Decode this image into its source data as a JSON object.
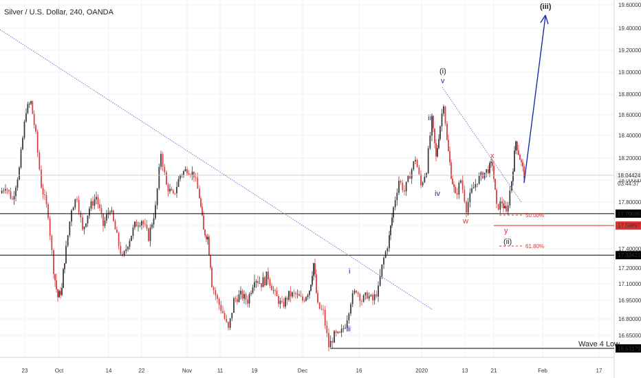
{
  "header": {
    "title": "Silver / U.S. Dollar, 240, OANDA"
  },
  "colors": {
    "up": "#3a3a3a",
    "down": "#e04040",
    "blue": "#1b2aa8",
    "red": "#e03030",
    "grid": "#eef1f6",
    "axis": "#555555"
  },
  "chart_data": {
    "type": "candlestick",
    "title": "Silver / U.S. Dollar, 240, OANDA",
    "ylim": [
      16.5,
      19.7
    ],
    "y_ticks": [
      "19.60000",
      "19.40000",
      "19.20000",
      "19.00000",
      "18.80000",
      "18.60000",
      "18.40000",
      "18.20000",
      "18.00000",
      "17.80000",
      "17.60000",
      "17.40000",
      "17.20000",
      "17.10000",
      "16.95000",
      "16.80000",
      "16.65000"
    ],
    "x_ticks": [
      "23",
      "Oct",
      "14",
      "22",
      "Nov",
      "11",
      "19",
      "Dec",
      "16",
      "2020",
      "13",
      "21",
      "Feb",
      "17"
    ],
    "price_path": [
      [
        0,
        17.88
      ],
      [
        8,
        17.95
      ],
      [
        18,
        17.82
      ],
      [
        28,
        18.1
      ],
      [
        38,
        18.65
      ],
      [
        45,
        18.72
      ],
      [
        52,
        18.4
      ],
      [
        60,
        17.95
      ],
      [
        70,
        17.7
      ],
      [
        78,
        17.2
      ],
      [
        84,
        16.98
      ],
      [
        90,
        17.05
      ],
      [
        96,
        17.4
      ],
      [
        104,
        17.75
      ],
      [
        112,
        17.85
      ],
      [
        120,
        17.55
      ],
      [
        130,
        17.75
      ],
      [
        140,
        17.85
      ],
      [
        150,
        17.6
      ],
      [
        160,
        17.75
      ],
      [
        170,
        17.5
      ],
      [
        178,
        17.3
      ],
      [
        186,
        17.45
      ],
      [
        196,
        17.6
      ],
      [
        206,
        17.65
      ],
      [
        216,
        17.5
      ],
      [
        226,
        17.75
      ],
      [
        234,
        18.25
      ],
      [
        242,
        17.95
      ],
      [
        252,
        17.85
      ],
      [
        262,
        18.05
      ],
      [
        272,
        18.1
      ],
      [
        282,
        18.05
      ],
      [
        290,
        17.85
      ],
      [
        296,
        17.55
      ],
      [
        302,
        17.5
      ],
      [
        308,
        17.1
      ],
      [
        316,
        16.95
      ],
      [
        324,
        16.85
      ],
      [
        332,
        16.7
      ],
      [
        340,
        16.95
      ],
      [
        350,
        17.0
      ],
      [
        360,
        16.95
      ],
      [
        370,
        17.15
      ],
      [
        380,
        17.1
      ],
      [
        390,
        17.15
      ],
      [
        400,
        17.0
      ],
      [
        410,
        16.9
      ],
      [
        420,
        17.0
      ],
      [
        430,
        17.0
      ],
      [
        440,
        16.95
      ],
      [
        450,
        17.05
      ],
      [
        456,
        17.25
      ],
      [
        462,
        16.9
      ],
      [
        470,
        16.85
      ],
      [
        478,
        16.55
      ],
      [
        486,
        16.65
      ],
      [
        494,
        16.65
      ],
      [
        502,
        16.75
      ],
      [
        510,
        16.95
      ],
      [
        518,
        17.05
      ],
      [
        526,
        16.95
      ],
      [
        534,
        17.0
      ],
      [
        542,
        16.95
      ],
      [
        550,
        17.05
      ],
      [
        558,
        17.3
      ],
      [
        566,
        17.5
      ],
      [
        572,
        17.75
      ],
      [
        580,
        18.0
      ],
      [
        588,
        17.9
      ],
      [
        596,
        18.05
      ],
      [
        604,
        18.2
      ],
      [
        612,
        17.95
      ],
      [
        620,
        18.1
      ],
      [
        628,
        18.55
      ],
      [
        634,
        18.2
      ],
      [
        640,
        18.5
      ],
      [
        645,
        18.72
      ],
      [
        650,
        18.35
      ],
      [
        656,
        18.05
      ],
      [
        662,
        17.85
      ],
      [
        670,
        18.0
      ],
      [
        678,
        17.75
      ],
      [
        686,
        17.9
      ],
      [
        694,
        18.0
      ],
      [
        702,
        18.05
      ],
      [
        710,
        18.1
      ],
      [
        716,
        18.15
      ],
      [
        722,
        17.75
      ],
      [
        730,
        17.8
      ],
      [
        736,
        17.7
      ],
      [
        744,
        18.0
      ],
      [
        750,
        18.35
      ],
      [
        756,
        18.2
      ],
      [
        762,
        18.05
      ]
    ],
    "horizontal_levels": [
      {
        "value": 17.70095,
        "label": "17.70095",
        "color": "#000000"
      },
      {
        "value": 17.33421,
        "label": "17.33421",
        "color": "#000000"
      },
      {
        "value": 16.53179,
        "label": "16.53179",
        "color": "#000000"
      },
      {
        "value": 17.59897,
        "label": "17.59897",
        "color": "#e03030"
      },
      {
        "value": 18.04424,
        "label": "18.04424",
        "color": "#aaaaaa"
      }
    ],
    "current_price_countdown": "03:44:37",
    "fib_levels": [
      {
        "label": "50.00%"
      },
      {
        "label": "61.80%"
      }
    ],
    "annotations": [
      {
        "text": "(i)",
        "color": "#222222"
      },
      {
        "text": "v",
        "color": "#1b2aa8"
      },
      {
        "text": "iii",
        "color": "#1b2aa8"
      },
      {
        "text": "iv",
        "color": "#1b2aa8"
      },
      {
        "text": "x",
        "color": "#e03030"
      },
      {
        "text": "w",
        "color": "#e03030"
      },
      {
        "text": "y",
        "color": "#e03030"
      },
      {
        "text": "(ii)",
        "color": "#222222"
      },
      {
        "text": "(iii)",
        "color": "#222222"
      },
      {
        "text": "i",
        "color": "#1b2aa8"
      },
      {
        "text": "ii",
        "color": "#1b2aa8"
      },
      {
        "text": "Wave 4 Low",
        "color": "#222222"
      }
    ]
  }
}
